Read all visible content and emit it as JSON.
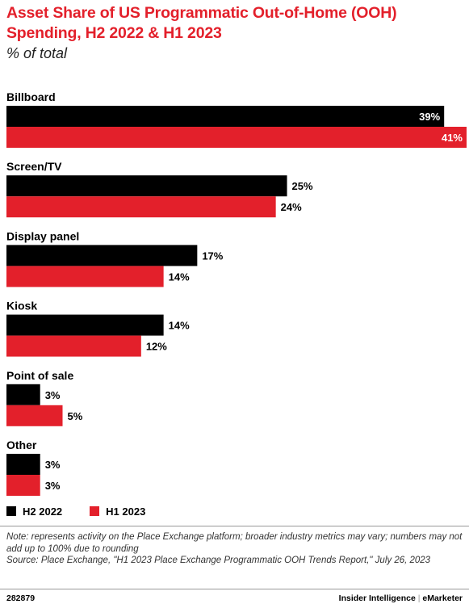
{
  "header": {
    "title": "Asset Share of US Programmatic Out-of-Home (OOH) Spending, H2 2022 & H1 2023",
    "subtitle": "% of total"
  },
  "chart_data": {
    "type": "bar",
    "orientation": "horizontal",
    "categories": [
      "Billboard",
      "Screen/TV",
      "Display panel",
      "Kiosk",
      "Point of sale",
      "Other"
    ],
    "series": [
      {
        "name": "H2 2022",
        "color": "#000000",
        "values": [
          39,
          25,
          17,
          14,
          3,
          3
        ]
      },
      {
        "name": "H1 2023",
        "color": "#e3202b",
        "values": [
          41,
          24,
          14,
          12,
          5,
          3
        ]
      }
    ],
    "value_suffix": "%",
    "legend": "bottom-left",
    "grid": false
  },
  "note": "Note: represents activity on the Place Exchange platform; broader industry metrics may vary; numbers may not add up to 100% due to rounding",
  "source": "Source: Place Exchange, \"H1 2023 Place Exchange Programmatic OOH Trends Report,\" July 26, 2023",
  "footer": {
    "id": "282879",
    "brand_left": "Insider Intelligence",
    "brand_sep": "|",
    "brand_right": "eMarketer"
  }
}
